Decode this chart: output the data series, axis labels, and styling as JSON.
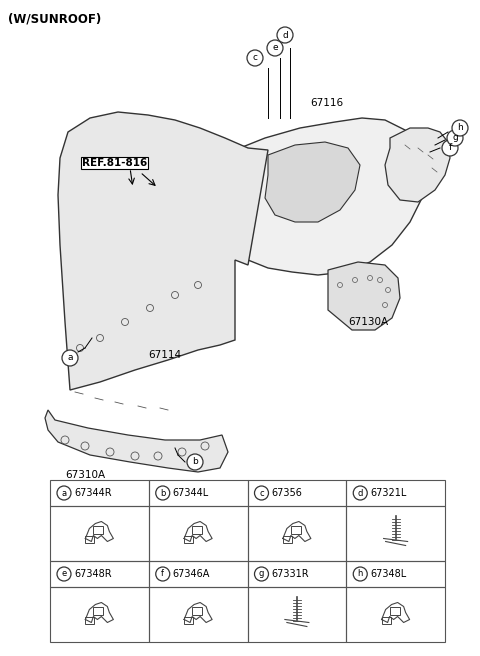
{
  "title": "(W/SUNROOF)",
  "bg_color": "#ffffff",
  "diagram_labels": {
    "ref_label": "REF.81-816",
    "part_67116": "67116",
    "part_67114": "67114",
    "part_67130A": "67130A",
    "part_67310A": "67310A"
  },
  "callout_circles": [
    "a",
    "b",
    "c",
    "d",
    "e",
    "f",
    "g",
    "h"
  ],
  "parts_table": [
    {
      "letter": "a",
      "part": "67344R"
    },
    {
      "letter": "b",
      "part": "67344L"
    },
    {
      "letter": "c",
      "part": "67356"
    },
    {
      "letter": "d",
      "part": "67321L"
    },
    {
      "letter": "e",
      "part": "67348R"
    },
    {
      "letter": "f",
      "part": "67346A"
    },
    {
      "letter": "g",
      "part": "67331R"
    },
    {
      "letter": "h",
      "part": "67348L"
    }
  ],
  "line_color": "#333333",
  "table_border_color": "#555555",
  "callout_bg": "#ffffff",
  "text_color": "#000000"
}
